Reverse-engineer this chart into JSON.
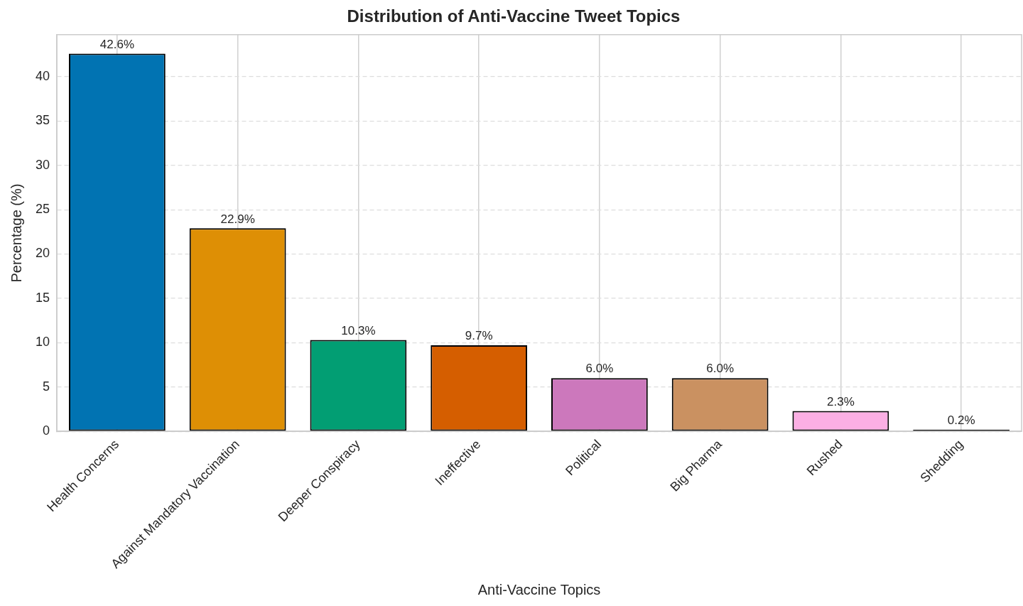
{
  "chart_data": {
    "type": "bar",
    "title": "Distribution of Anti-Vaccine Tweet Topics",
    "xlabel": "Anti-Vaccine Topics",
    "ylabel": "Percentage (%)",
    "categories": [
      "Health Concerns",
      "Against Mandatory Vaccination",
      "Deeper Conspiracy",
      "Ineffective",
      "Political",
      "Big Pharma",
      "Rushed",
      "Shedding"
    ],
    "values": [
      42.6,
      22.9,
      10.3,
      9.7,
      6.0,
      6.0,
      2.3,
      0.2
    ],
    "colors": [
      "#0173b2",
      "#de8f05",
      "#029e73",
      "#d55e00",
      "#cc78bc",
      "#ca9161",
      "#fbafe4",
      "#000000"
    ],
    "value_labels": [
      "42.6%",
      "22.9%",
      "10.3%",
      "9.7%",
      "6.0%",
      "6.0%",
      "2.3%",
      "0.2%"
    ],
    "ylim": [
      0,
      44.73
    ],
    "yticks": [
      0,
      5,
      10,
      15,
      20,
      25,
      30,
      35,
      40
    ],
    "grid": true,
    "legend": false
  }
}
